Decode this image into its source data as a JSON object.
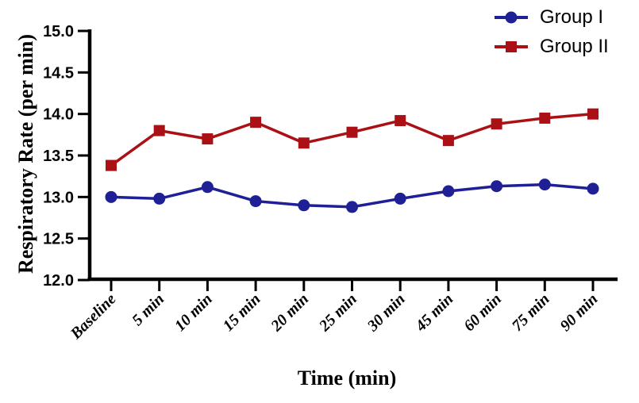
{
  "chart_data": {
    "type": "line",
    "title": "",
    "xlabel": "Time (min)",
    "ylabel": "Respiratory Rate (per min)",
    "categories": [
      "Baseline",
      "5 min",
      "10 min",
      "15 min",
      "20 min",
      "25 min",
      "30 min",
      "45 min",
      "60 min",
      "75 min",
      "90 min"
    ],
    "y_ticks": [
      12.0,
      12.5,
      13.0,
      13.5,
      14.0,
      14.5,
      15.0
    ],
    "y_tick_labels": [
      "12.0",
      "12.5",
      "13.0",
      "13.5",
      "14.0",
      "14.5",
      "15.0"
    ],
    "ylim": [
      12.0,
      15.0
    ],
    "grid": false,
    "legend_position": "top-right",
    "x_tick_rotation_deg": 45,
    "axis_color": "#000000",
    "series": [
      {
        "name": "Group I",
        "marker": "circle",
        "color": "#1f1f96",
        "values": [
          13.0,
          12.98,
          13.12,
          12.95,
          12.9,
          12.88,
          12.98,
          13.07,
          13.13,
          13.15,
          13.1
        ]
      },
      {
        "name": "Group II",
        "marker": "square",
        "color": "#ab1015",
        "values": [
          13.38,
          13.8,
          13.7,
          13.9,
          13.65,
          13.78,
          13.92,
          13.68,
          13.88,
          13.95,
          14.0
        ]
      }
    ]
  }
}
